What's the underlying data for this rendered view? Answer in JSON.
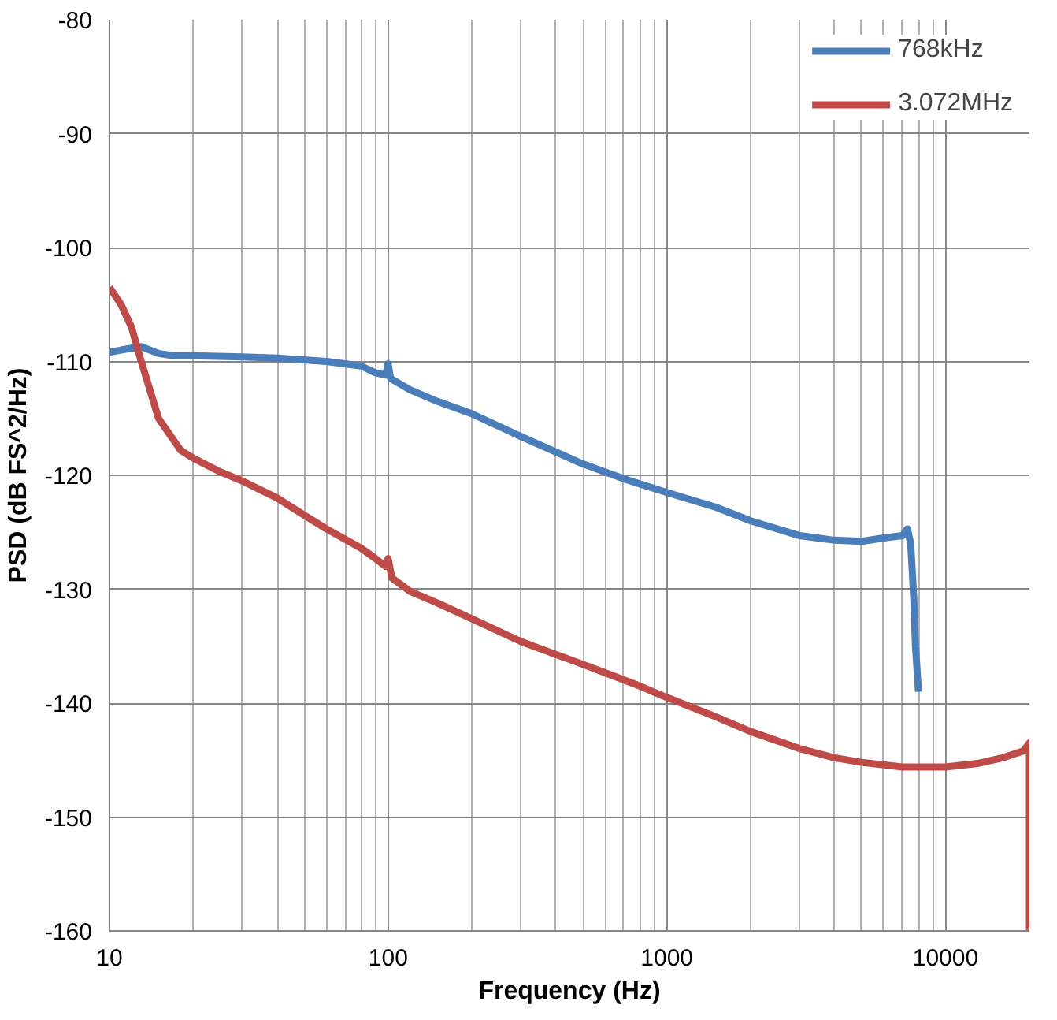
{
  "chart_data": {
    "type": "line",
    "xlabel": "Frequency (Hz)",
    "ylabel": "PSD (dB FS^2/Hz)",
    "log": "x",
    "xlim": [
      10,
      20000
    ],
    "xticks": [
      10,
      100,
      1000,
      10000
    ],
    "ylim": [
      -160,
      -80
    ],
    "yticks": [
      -160,
      -150,
      -140,
      -130,
      -120,
      -110,
      -100,
      -90,
      -80
    ],
    "grid": true,
    "legend": "top right",
    "marker": "none",
    "line_style": "solid",
    "series": [
      {
        "name": "768kHz",
        "color": "#4a7ebb",
        "x": [
          10,
          11,
          13,
          15,
          17,
          20,
          30,
          40,
          60,
          80,
          90,
          98,
          100,
          102,
          120,
          150,
          200,
          300,
          500,
          700,
          1000,
          1500,
          2000,
          3000,
          4000,
          5000,
          6000,
          7000,
          7300,
          7500,
          7700,
          7800,
          8000
        ],
        "values": [
          -109.2,
          -109,
          -108.7,
          -109.3,
          -109.5,
          -109.5,
          -109.6,
          -109.7,
          -110,
          -110.4,
          -111,
          -111.2,
          -110.2,
          -111.5,
          -112.5,
          -113.5,
          -114.6,
          -116.6,
          -119,
          -120.3,
          -121.5,
          -122.8,
          -124,
          -125.3,
          -125.7,
          -125.8,
          -125.5,
          -125.3,
          -124.7,
          -126,
          -131,
          -135,
          -139
        ]
      },
      {
        "name": "3.072MHz",
        "color": "#be4b48",
        "x": [
          10,
          11,
          12,
          13,
          15,
          18,
          20,
          25,
          30,
          40,
          50,
          60,
          80,
          90,
          98,
          100,
          103,
          120,
          150,
          200,
          300,
          500,
          800,
          1000,
          1500,
          2000,
          3000,
          4000,
          5000,
          7000,
          10000,
          13000,
          16000,
          19000,
          20000,
          20000
        ],
        "values": [
          -103.5,
          -105,
          -107,
          -110,
          -115,
          -117.8,
          -118.5,
          -119.7,
          -120.5,
          -122,
          -123.5,
          -124.7,
          -126.4,
          -127.3,
          -128,
          -127.3,
          -129,
          -130.2,
          -131.2,
          -132.6,
          -134.6,
          -136.6,
          -138.5,
          -139.5,
          -141.2,
          -142.5,
          -144,
          -144.8,
          -145.2,
          -145.6,
          -145.6,
          -145.3,
          -144.8,
          -144.2,
          -143.5,
          -160
        ]
      }
    ]
  }
}
